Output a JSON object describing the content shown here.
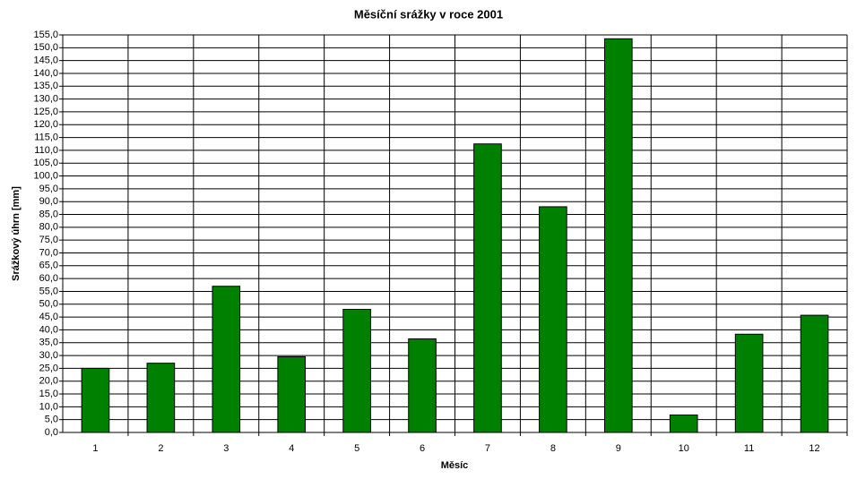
{
  "chart_data": {
    "type": "bar",
    "title": "Měsíční srážky v roce 2001",
    "x_label": "Měsíc",
    "y_label": "Srážkový úhrn [mm]",
    "categories": [
      "1",
      "2",
      "3",
      "4",
      "5",
      "6",
      "7",
      "8",
      "9",
      "10",
      "11",
      "12"
    ],
    "values": [
      25,
      27,
      57,
      29.5,
      48,
      36.5,
      112.5,
      88,
      153.5,
      6.8,
      38.3,
      45.7
    ],
    "color": "#008000",
    "ylim": [
      0,
      155
    ],
    "yticks": [
      {
        "value": 0,
        "label": "0,0"
      },
      {
        "value": 5,
        "label": "5,0"
      },
      {
        "value": 10,
        "label": "10,0"
      },
      {
        "value": 15,
        "label": "15,0"
      },
      {
        "value": 20,
        "label": "20,0"
      },
      {
        "value": 25,
        "label": "25,0"
      },
      {
        "value": 30,
        "label": "30,0"
      },
      {
        "value": 35,
        "label": "35,0"
      },
      {
        "value": 40,
        "label": "40,0"
      },
      {
        "value": 45,
        "label": "45,0"
      },
      {
        "value": 50,
        "label": "50,0"
      },
      {
        "value": 55,
        "label": "55,0"
      },
      {
        "value": 60,
        "label": "60,0"
      },
      {
        "value": 65,
        "label": "65,0"
      },
      {
        "value": 70,
        "label": "70,0"
      },
      {
        "value": 75,
        "label": "75,0"
      },
      {
        "value": 80,
        "label": "80,0"
      },
      {
        "value": 85,
        "label": "85,0"
      },
      {
        "value": 90,
        "label": "90,0"
      },
      {
        "value": 95,
        "label": "95,0"
      },
      {
        "value": 100,
        "label": "100,0"
      },
      {
        "value": 105,
        "label": "105,0"
      },
      {
        "value": 110,
        "label": "110,0"
      },
      {
        "value": 115,
        "label": "115,0"
      },
      {
        "value": 120,
        "label": "120,0"
      },
      {
        "value": 125,
        "label": "125,0"
      },
      {
        "value": 130,
        "label": "130,0"
      },
      {
        "value": 135,
        "label": "135,0"
      },
      {
        "value": 140,
        "label": "140,0"
      },
      {
        "value": 145,
        "label": "145,0"
      },
      {
        "value": 150,
        "label": "150,0"
      },
      {
        "value": 155,
        "label": "155,0"
      }
    ],
    "grid": true
  }
}
